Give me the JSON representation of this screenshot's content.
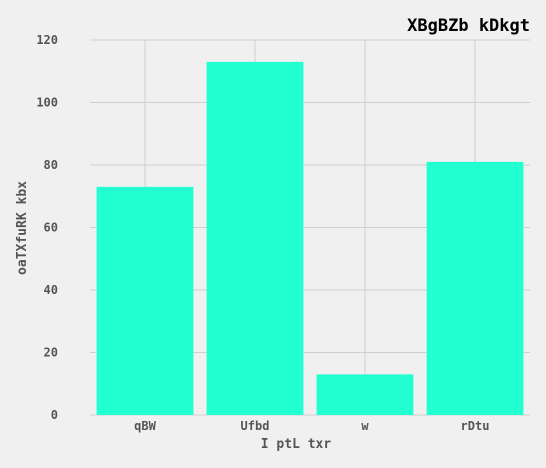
{
  "chart_data": {
    "type": "bar",
    "title": "XBgBZb  kDkgt",
    "xlabel": "I ptL txr",
    "ylabel": "oaTXfuRK kbx",
    "categories": [
      "qBW",
      "Ufbd",
      "w",
      "rDtu"
    ],
    "values": [
      73,
      113,
      13,
      81
    ],
    "ylim": [
      0,
      120
    ],
    "yticks": [
      0,
      20,
      40,
      60,
      80,
      100,
      120
    ],
    "grid": true,
    "bar_color": "#22ffd0",
    "background_color": "#f0f0f0",
    "grid_color": "#cfcfcf"
  }
}
